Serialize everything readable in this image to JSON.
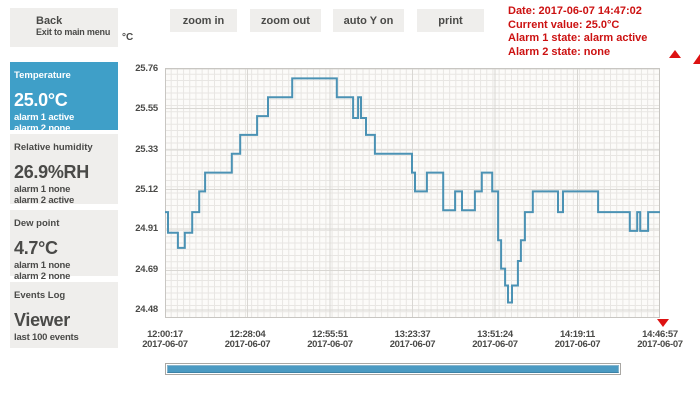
{
  "sidebar": {
    "back": {
      "title": "Back",
      "subtitle": "Exit to main menu"
    },
    "panels": [
      {
        "id": "temperature",
        "label": "Temperature",
        "value": "25.0°C",
        "line1": "alarm 1 active",
        "line2": "alarm 2 none",
        "active": true
      },
      {
        "id": "humidity",
        "label": "Relative humidity",
        "value": "26.9%RH",
        "line1": "alarm 1 none",
        "line2": "alarm 2 active",
        "active": false
      },
      {
        "id": "dewpoint",
        "label": "Dew point",
        "value": "4.7°C",
        "line1": "alarm 1 none",
        "line2": "alarm 2 none",
        "active": false
      },
      {
        "id": "events",
        "label": "Events Log",
        "value": "Viewer",
        "line1": "last 100 events",
        "active": false
      }
    ]
  },
  "toolbar": {
    "buttons": [
      {
        "label": "zoom in"
      },
      {
        "label": "zoom out"
      },
      {
        "label": "auto Y on"
      },
      {
        "label": "print"
      }
    ]
  },
  "status": {
    "date": "Date: 2017-06-07 14:47:02",
    "current": "Current value: 25.0°C",
    "alarm1": "Alarm 1 state: alarm active",
    "alarm2": "Alarm 2 state: none"
  },
  "chart_data": {
    "type": "line",
    "title": "",
    "ylabel": "°C",
    "grid": true,
    "legend": "none",
    "y_ticks": [
      25.76,
      25.55,
      25.33,
      25.12,
      24.91,
      24.69,
      24.48
    ],
    "y_axis": {
      "max": 25.76,
      "min": 24.48
    },
    "x_ticks": [
      {
        "time": "12:00:17",
        "date": "2017-06-07"
      },
      {
        "time": "12:28:04",
        "date": "2017-06-07"
      },
      {
        "time": "12:55:51",
        "date": "2017-06-07"
      },
      {
        "time": "13:23:37",
        "date": "2017-06-07"
      },
      {
        "time": "13:51:24",
        "date": "2017-06-07"
      },
      {
        "time": "14:19:11",
        "date": "2017-06-07"
      },
      {
        "time": "14:46:57",
        "date": "2017-06-07"
      }
    ],
    "series": [
      {
        "name": "Temperature",
        "unit": "°C",
        "end_frac": 1.0,
        "levels": [
          [
            0.0,
            25.0
          ],
          [
            0.006,
            24.89
          ],
          [
            0.026,
            24.81
          ],
          [
            0.04,
            24.89
          ],
          [
            0.055,
            25.0
          ],
          [
            0.069,
            25.11
          ],
          [
            0.081,
            25.21
          ],
          [
            0.135,
            25.31
          ],
          [
            0.152,
            25.41
          ],
          [
            0.186,
            25.51
          ],
          [
            0.208,
            25.61
          ],
          [
            0.257,
            25.71
          ],
          [
            0.347,
            25.61
          ],
          [
            0.38,
            25.5
          ],
          [
            0.39,
            25.61
          ],
          [
            0.396,
            25.5
          ],
          [
            0.406,
            25.41
          ],
          [
            0.424,
            25.31
          ],
          [
            0.499,
            25.21
          ],
          [
            0.505,
            25.11
          ],
          [
            0.529,
            25.21
          ],
          [
            0.562,
            25.01
          ],
          [
            0.586,
            25.11
          ],
          [
            0.6,
            25.01
          ],
          [
            0.626,
            25.11
          ],
          [
            0.64,
            25.21
          ],
          [
            0.661,
            25.11
          ],
          [
            0.673,
            24.85
          ],
          [
            0.679,
            24.7
          ],
          [
            0.687,
            24.61
          ],
          [
            0.693,
            24.52
          ],
          [
            0.701,
            24.61
          ],
          [
            0.713,
            24.74
          ],
          [
            0.719,
            24.85
          ],
          [
            0.727,
            25.0
          ],
          [
            0.743,
            25.11
          ],
          [
            0.794,
            25.0
          ],
          [
            0.804,
            25.11
          ],
          [
            0.875,
            25.0
          ],
          [
            0.939,
            24.9
          ],
          [
            0.954,
            25.0
          ],
          [
            0.96,
            24.9
          ],
          [
            0.976,
            25.0
          ]
        ]
      }
    ]
  },
  "colors": {
    "accent_blue": "#3f9fc8",
    "line_color": "#4b92b4",
    "alert_red": "#cc1111",
    "panel_bg": "#efeeec",
    "text_dark": "#4a4a48",
    "plot_bg": "#fcfbf9",
    "grid_minor": "#e8e6e3",
    "grid_major": "#d9d7d3",
    "plot_border": "#c8c6c2",
    "scrollbar_fill": "#4b9ac2"
  }
}
